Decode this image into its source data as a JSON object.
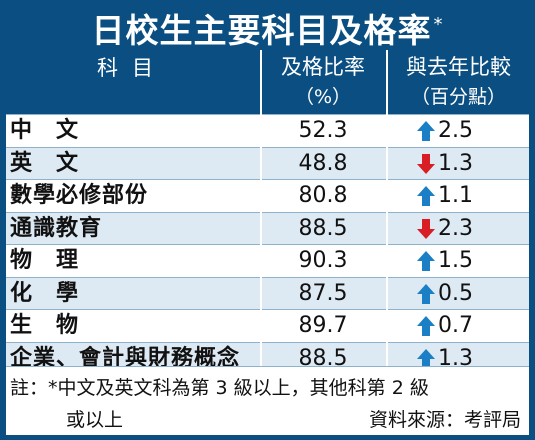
{
  "title": "日校生主要科目及格率",
  "title_mark": "*",
  "header": {
    "col1": "科目",
    "col2": "及格比率",
    "col2_unit": "（%）",
    "col3": "與去年比較",
    "col3_unit": "（百分點）"
  },
  "rows": [
    {
      "subject": "中　文",
      "rate": "52.3",
      "change": "2.5",
      "direction": "up"
    },
    {
      "subject": "英　文",
      "rate": "48.8",
      "change": "1.3",
      "direction": "down"
    },
    {
      "subject": "數學必修部份",
      "rate": "80.8",
      "change": "1.1",
      "direction": "up"
    },
    {
      "subject": "通識教育",
      "rate": "88.5",
      "change": "2.3",
      "direction": "down"
    },
    {
      "subject": "物　理",
      "rate": "90.3",
      "change": "1.5",
      "direction": "up"
    },
    {
      "subject": "化　學",
      "rate": "87.5",
      "change": "0.5",
      "direction": "up"
    },
    {
      "subject": "生　物",
      "rate": "89.7",
      "change": "0.7",
      "direction": "up"
    },
    {
      "subject": "企業、會計與財務概念",
      "rate": "88.5",
      "change": "1.3",
      "direction": "up"
    }
  ],
  "colors": {
    "up": "#1a7fc4",
    "down": "#d81e24"
  },
  "footnote_line1": "註：*中文及英文科為第 3 級以上，其他科第 2 級",
  "footnote_line2": "或以上",
  "source": "資料來源：考評局"
}
